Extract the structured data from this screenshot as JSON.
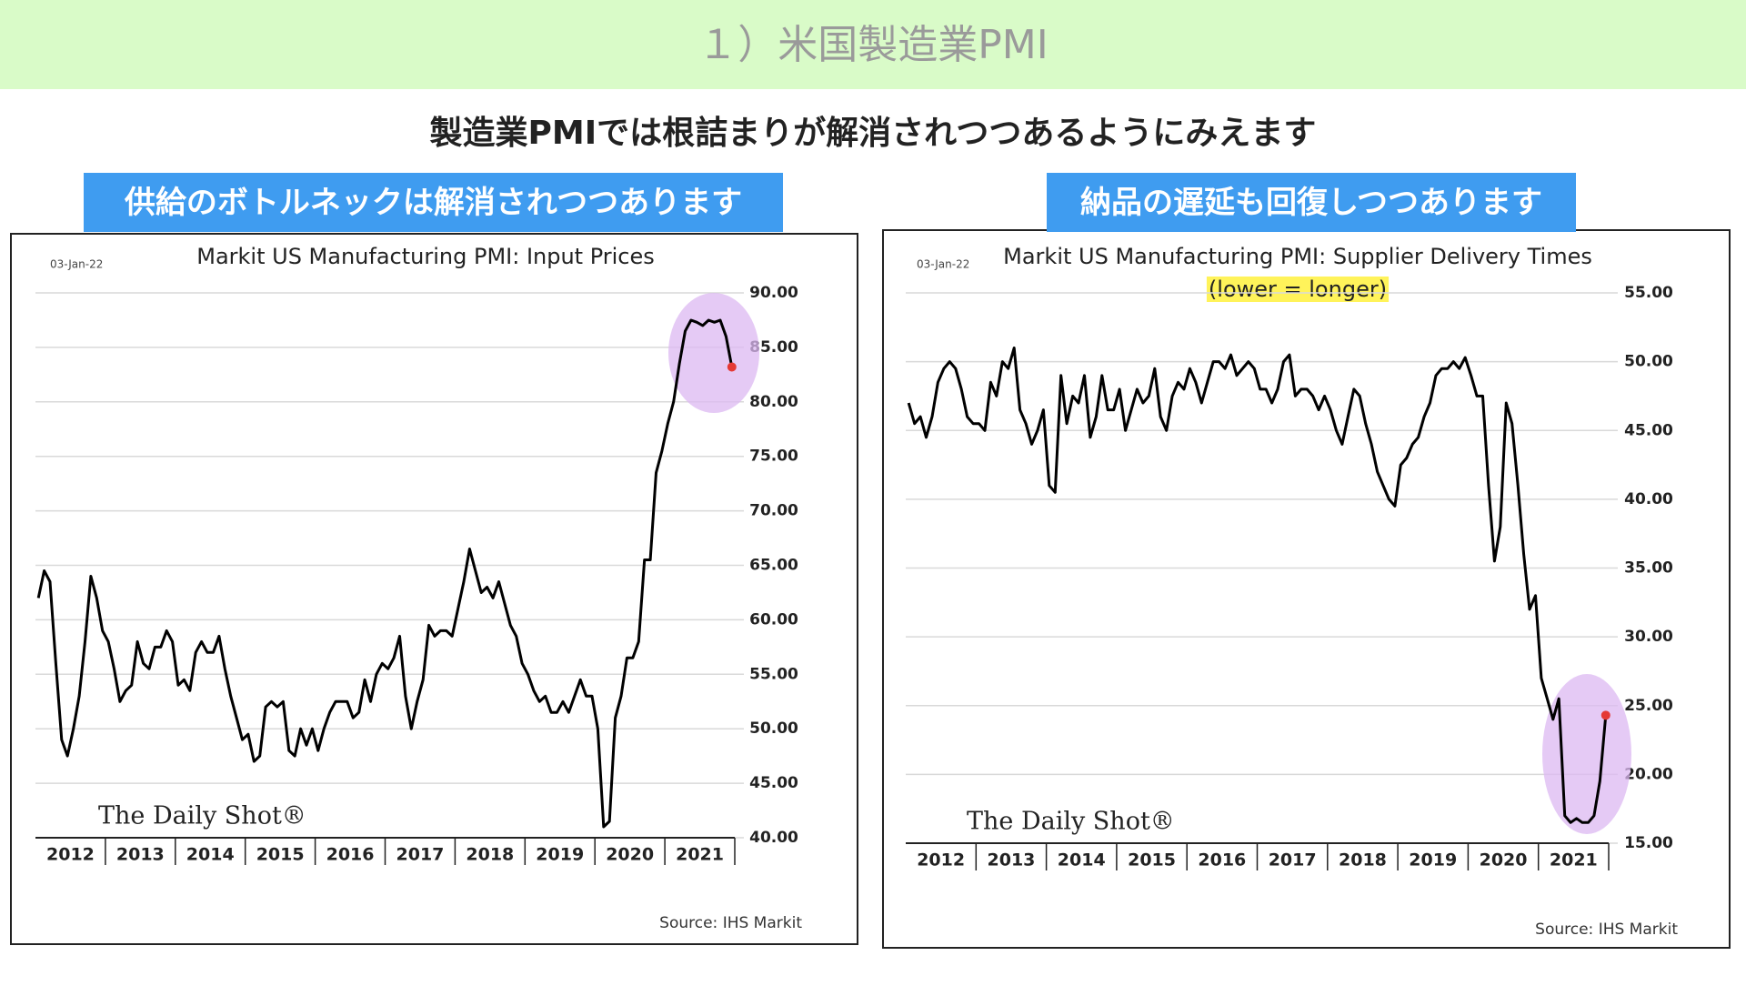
{
  "header": {
    "title": "１）米国製造業PMI",
    "subtitle": "製造業PMIでは根詰まりが解消されつつあるようにみえます"
  },
  "chart_data": [
    {
      "type": "line",
      "heading": "供給のボトルネックは解消されつつあります",
      "title": "Markit US Manufacturing PMI: Input Prices",
      "date": "03-Jan-22",
      "source": "Source: IHS Markit",
      "watermark": "The Daily Shot®",
      "x_labels": [
        "2012",
        "2013",
        "2014",
        "2015",
        "2016",
        "2017",
        "2018",
        "2019",
        "2020",
        "2021"
      ],
      "values": [
        62,
        64.5,
        63.5,
        56,
        49,
        47.5,
        50,
        53,
        58,
        64,
        62,
        59,
        58,
        55.5,
        52.5,
        53.5,
        54,
        58,
        56,
        55.5,
        57.5,
        57.5,
        59,
        58,
        54,
        54.5,
        53.5,
        57,
        58,
        57,
        57,
        58.5,
        55.5,
        53,
        51,
        49,
        49.5,
        47,
        47.5,
        52,
        52.5,
        52,
        52.5,
        48,
        47.5,
        50,
        48.5,
        50,
        48,
        50,
        51.5,
        52.5,
        52.5,
        52.5,
        51,
        51.5,
        54.5,
        52.5,
        55,
        56,
        55.5,
        56.5,
        58.5,
        53,
        50,
        52.5,
        54.5,
        59.5,
        58.5,
        59,
        59,
        58.5,
        61,
        63.5,
        66.5,
        64.5,
        62.5,
        63,
        62,
        63.5,
        61.5,
        59.5,
        58.5,
        56,
        55,
        53.5,
        52.5,
        53,
        51.5,
        51.5,
        52.5,
        51.5,
        53,
        54.5,
        53,
        53,
        50,
        41,
        41.5,
        51,
        53,
        56.5,
        56.5,
        58,
        65.5,
        65.5,
        73.5,
        75.5,
        78,
        80,
        83.5,
        86.5,
        87.5,
        87.3,
        87,
        87.5,
        87.3,
        87.5,
        86,
        83.2
      ],
      "color": "#000000",
      "highlight_color": "#e53935",
      "ylim": [
        40,
        90
      ],
      "yticks": [
        {
          "value": 40,
          "label": "40.00"
        },
        {
          "value": 45,
          "label": "45.00"
        },
        {
          "value": 50,
          "label": "50.00"
        },
        {
          "value": 55,
          "label": "55.00"
        },
        {
          "value": 60,
          "label": "60.00"
        },
        {
          "value": 65,
          "label": "65.00"
        },
        {
          "value": 70,
          "label": "70.00"
        },
        {
          "value": 75,
          "label": "75.00"
        },
        {
          "value": 80,
          "label": "80.00"
        },
        {
          "value": 85,
          "label": "85.00"
        },
        {
          "value": 90,
          "label": "90.00"
        }
      ],
      "grid": true
    },
    {
      "type": "line",
      "heading": "納品の遅延も回復しつつあります",
      "title": "Markit US Manufacturing PMI: Supplier Delivery Times",
      "annotation": "(lower = longer)",
      "date": "03-Jan-22",
      "source": "Source: IHS Markit",
      "watermark": "The Daily Shot®",
      "x_labels": [
        "2012",
        "2013",
        "2014",
        "2015",
        "2016",
        "2017",
        "2018",
        "2019",
        "2020",
        "2021"
      ],
      "values": [
        47,
        45.5,
        46,
        44.5,
        46,
        48.5,
        49.5,
        50,
        49.5,
        48,
        46,
        45.5,
        45.5,
        45,
        48.5,
        47.5,
        50,
        49.5,
        51,
        46.5,
        45.5,
        44,
        45,
        46.5,
        41,
        40.5,
        49,
        45.5,
        47.5,
        47,
        49,
        44.5,
        46,
        49,
        46.5,
        46.5,
        48,
        45,
        46.5,
        48,
        47,
        47.5,
        49.5,
        46,
        45,
        47.5,
        48.5,
        48,
        49.5,
        48.5,
        47,
        48.5,
        50,
        50,
        49.5,
        50.5,
        49,
        49.5,
        50,
        49.5,
        48,
        48,
        47,
        48,
        50,
        50.5,
        47.5,
        48,
        48,
        47.5,
        46.5,
        47.5,
        46.5,
        45,
        44,
        46,
        48,
        47.5,
        45.5,
        44,
        42,
        41,
        40,
        39.5,
        42.5,
        43,
        44,
        44.5,
        46,
        47,
        49,
        49.5,
        49.5,
        50,
        49.5,
        50.3,
        49,
        47.5,
        47.5,
        41,
        35.5,
        38,
        47,
        45.5,
        41,
        36,
        32,
        33,
        27,
        25.5,
        24,
        25.5,
        17,
        16.5,
        16.8,
        16.5,
        16.5,
        17,
        19.5,
        24.3
      ],
      "color": "#000000",
      "highlight_color": "#e53935",
      "ylim": [
        15,
        55
      ],
      "yticks": [
        {
          "value": 15,
          "label": "15.00"
        },
        {
          "value": 20,
          "label": "20.00"
        },
        {
          "value": 25,
          "label": "25.00"
        },
        {
          "value": 30,
          "label": "30.00"
        },
        {
          "value": 35,
          "label": "35.00"
        },
        {
          "value": 40,
          "label": "40.00"
        },
        {
          "value": 45,
          "label": "45.00"
        },
        {
          "value": 50,
          "label": "50.00"
        },
        {
          "value": 55,
          "label": "55.00"
        }
      ],
      "grid": true
    }
  ]
}
